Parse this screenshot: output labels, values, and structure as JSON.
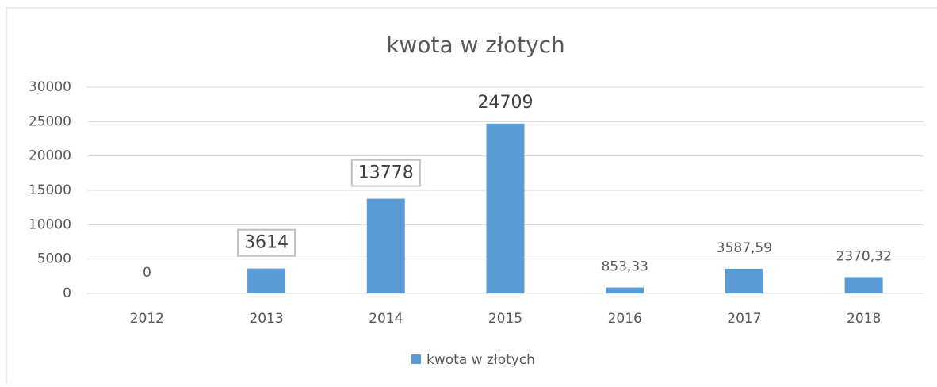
{
  "chart_data": {
    "type": "bar",
    "title": "kwota w złotych",
    "categories": [
      "2012",
      "2013",
      "2014",
      "2015",
      "2016",
      "2017",
      "2018"
    ],
    "series": [
      {
        "name": "kwota w złotych",
        "color": "#5b9bd5",
        "values": [
          0,
          3614,
          13778,
          24709,
          853.33,
          3587.59,
          2370.32
        ],
        "value_labels": [
          "0",
          "3614",
          "13778",
          "24709",
          "853,33",
          "3587,59",
          "2370,32"
        ]
      }
    ],
    "ylim": [
      0,
      30000
    ],
    "yticks": [
      0,
      5000,
      10000,
      15000,
      20000,
      25000,
      30000
    ],
    "grid": true,
    "legend": "bottom"
  }
}
